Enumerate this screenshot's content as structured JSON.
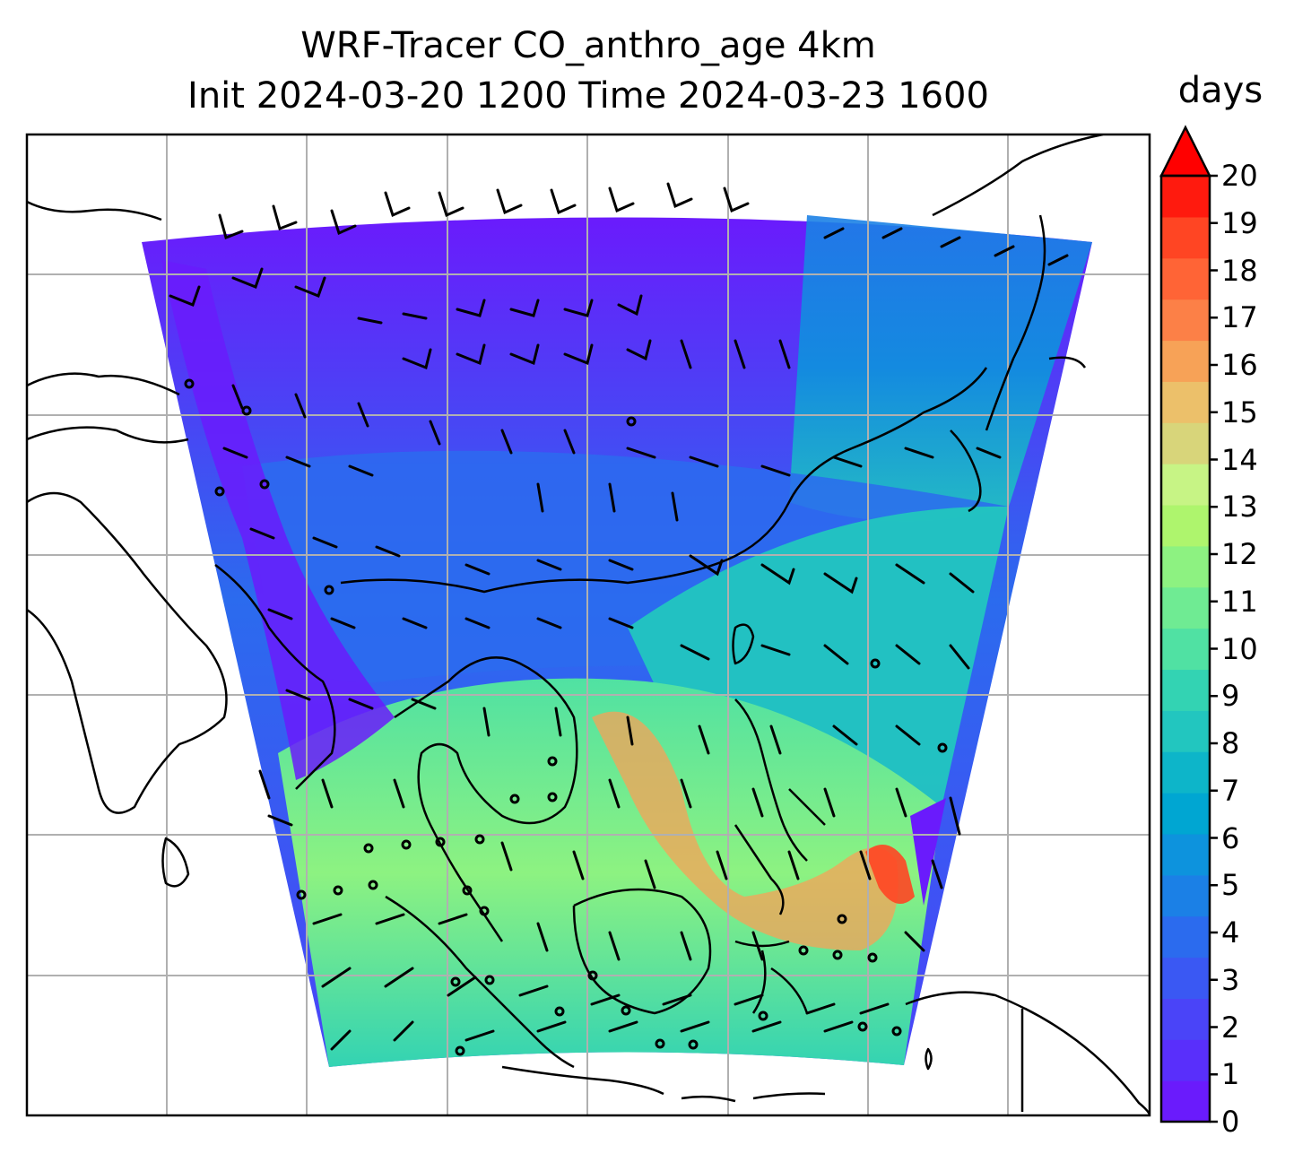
{
  "figure": {
    "title_line1": "WRF-Tracer CO_anthro_age 4km",
    "title_line2": "Init 2024-03-20 1200 Time 2024-03-23 1600",
    "colorbar_unit": "days",
    "colorbar_extend": "max",
    "colorbar_ticks": [
      "0",
      "1",
      "2",
      "3",
      "4",
      "5",
      "6",
      "7",
      "8",
      "9",
      "10",
      "11",
      "12",
      "13",
      "14",
      "15",
      "16",
      "17",
      "18",
      "19",
      "20"
    ],
    "colormap": [
      "#6a1bfc",
      "#592ffb",
      "#4a44f8",
      "#3a58f3",
      "#2b6bee",
      "#1b80e6",
      "#0d93dd",
      "#00a6d2",
      "#0db5c9",
      "#22c6bf",
      "#33d3b3",
      "#50e1a3",
      "#6feb93",
      "#8df281",
      "#aef56d",
      "#c7f485",
      "#d8d57a",
      "#ecc06a",
      "#f7a257",
      "#fc8047",
      "#ff6436",
      "#ff4523",
      "#ff1a0e"
    ],
    "colorbar_extend_color": "#ff0000",
    "gridlines": "on",
    "land_features": "coastlines",
    "overlay": "wind barbs"
  }
}
